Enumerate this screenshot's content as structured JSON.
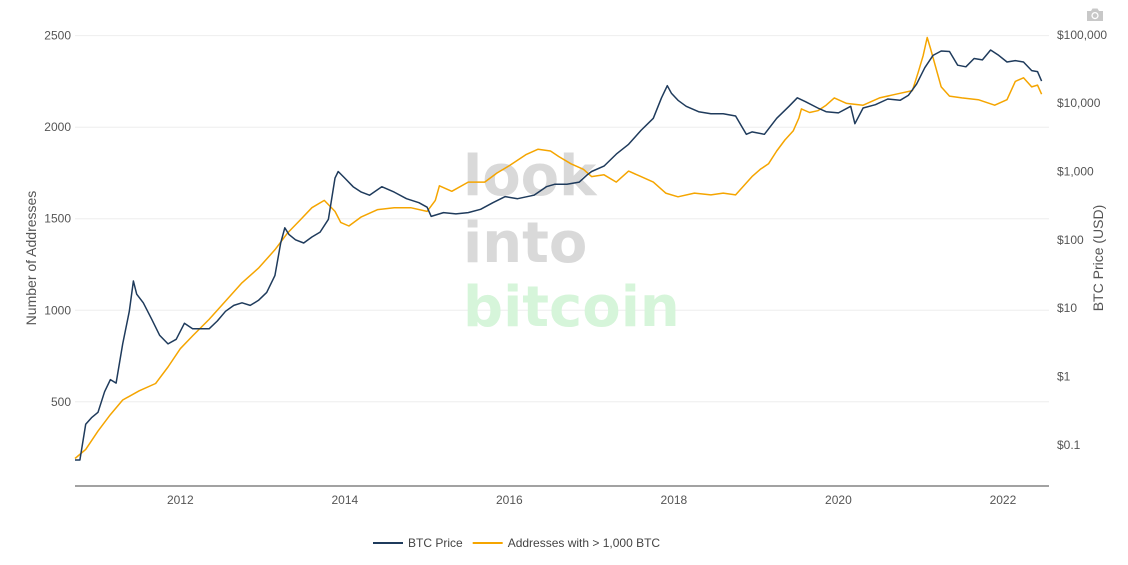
{
  "toolbar": {
    "camera_icon": "camera-icon"
  },
  "watermark": {
    "line1": "look",
    "line2": "into",
    "line3": "bitcoin",
    "color1": "#d9d9d9",
    "color2": "#d6f5da"
  },
  "chart_data": {
    "type": "line",
    "title": "",
    "xlabel": "",
    "xlim": [
      2010.72,
      2022.56
    ],
    "x_ticks": [
      2012,
      2014,
      2016,
      2018,
      2020,
      2022
    ],
    "x_tick_labels": [
      "2012",
      "2014",
      "2016",
      "2018",
      "2020",
      "2022"
    ],
    "y_left": {
      "label": "Number of Addresses",
      "range": [
        40,
        2520
      ],
      "ticks": [
        500,
        1000,
        1500,
        2000,
        2500
      ],
      "tick_labels": [
        "500",
        "1000",
        "1500",
        "2000",
        "2500"
      ]
    },
    "y_right": {
      "label": "BTC Price (USD)",
      "scale": "log",
      "range": [
        0.025,
        110000
      ],
      "ticks": [
        0.1,
        1,
        10,
        100,
        1000,
        10000,
        100000
      ],
      "tick_labels": [
        "$0.1",
        "$1",
        "$10",
        "$100",
        "$1,000",
        "$10,000",
        "$100,000"
      ]
    },
    "grid": true,
    "legend_position": "bottom-center",
    "series": [
      {
        "name": "BTC Price",
        "axis": "right",
        "color": "#1f3b5c",
        "x": [
          2010.72,
          2010.78,
          2010.85,
          2010.92,
          2011.0,
          2011.08,
          2011.15,
          2011.22,
          2011.3,
          2011.38,
          2011.43,
          2011.47,
          2011.55,
          2011.65,
          2011.75,
          2011.85,
          2011.95,
          2012.05,
          2012.15,
          2012.25,
          2012.35,
          2012.45,
          2012.55,
          2012.65,
          2012.75,
          2012.85,
          2012.95,
          2013.05,
          2013.15,
          2013.22,
          2013.27,
          2013.32,
          2013.4,
          2013.5,
          2013.6,
          2013.7,
          2013.8,
          2013.88,
          2013.92,
          2014.0,
          2014.1,
          2014.2,
          2014.3,
          2014.45,
          2014.6,
          2014.75,
          2014.9,
          2015.0,
          2015.05,
          2015.2,
          2015.35,
          2015.5,
          2015.65,
          2015.8,
          2015.95,
          2016.1,
          2016.3,
          2016.45,
          2016.55,
          2016.7,
          2016.85,
          2016.95,
          2017.0,
          2017.15,
          2017.3,
          2017.45,
          2017.6,
          2017.75,
          2017.85,
          2017.92,
          2017.97,
          2018.05,
          2018.15,
          2018.3,
          2018.45,
          2018.6,
          2018.75,
          2018.88,
          2018.95,
          2019.1,
          2019.25,
          2019.4,
          2019.5,
          2019.6,
          2019.75,
          2019.85,
          2020.0,
          2020.15,
          2020.2,
          2020.3,
          2020.45,
          2020.6,
          2020.75,
          2020.85,
          2020.95,
          2021.05,
          2021.15,
          2021.25,
          2021.35,
          2021.45,
          2021.55,
          2021.65,
          2021.75,
          2021.85,
          2021.95,
          2022.05,
          2022.15,
          2022.25,
          2022.35,
          2022.42,
          2022.47
        ],
        "y": [
          0.06,
          0.06,
          0.2,
          0.25,
          0.3,
          0.6,
          0.9,
          0.8,
          3.0,
          9.0,
          25,
          16,
          12,
          7,
          4,
          3,
          3.5,
          6,
          5,
          5,
          5,
          6.5,
          9,
          11,
          12,
          11,
          13,
          17,
          30,
          90,
          150,
          120,
          100,
          90,
          110,
          130,
          200,
          800,
          1000,
          800,
          600,
          500,
          450,
          600,
          500,
          400,
          350,
          300,
          220,
          250,
          240,
          250,
          280,
          350,
          430,
          400,
          450,
          600,
          650,
          650,
          700,
          900,
          1000,
          1200,
          1800,
          2500,
          4000,
          6000,
          12000,
          18000,
          14000,
          11000,
          9000,
          7500,
          7000,
          7000,
          6500,
          3500,
          3800,
          3500,
          6000,
          9000,
          12000,
          10500,
          8500,
          7500,
          7200,
          9000,
          5000,
          8500,
          9500,
          11500,
          11000,
          13000,
          19000,
          33000,
          50000,
          58000,
          57000,
          36000,
          34000,
          45000,
          43000,
          60000,
          50000,
          40000,
          42000,
          40000,
          30000,
          29000,
          21000
        ]
      },
      {
        "name": "Addresses with > 1,000 BTC",
        "axis": "left",
        "color": "#f5a500",
        "x": [
          2010.72,
          2010.85,
          2011.0,
          2011.15,
          2011.3,
          2011.5,
          2011.7,
          2011.85,
          2012.0,
          2012.15,
          2012.35,
          2012.55,
          2012.75,
          2012.95,
          2013.15,
          2013.3,
          2013.45,
          2013.6,
          2013.75,
          2013.88,
          2013.95,
          2014.05,
          2014.2,
          2014.4,
          2014.6,
          2014.8,
          2015.0,
          2015.1,
          2015.15,
          2015.3,
          2015.5,
          2015.7,
          2015.85,
          2016.0,
          2016.2,
          2016.35,
          2016.5,
          2016.6,
          2016.75,
          2016.9,
          2017.0,
          2017.15,
          2017.3,
          2017.45,
          2017.6,
          2017.75,
          2017.9,
          2018.05,
          2018.25,
          2018.45,
          2018.6,
          2018.75,
          2018.85,
          2018.95,
          2019.05,
          2019.15,
          2019.25,
          2019.35,
          2019.45,
          2019.52,
          2019.55,
          2019.65,
          2019.75,
          2019.85,
          2019.95,
          2020.1,
          2020.3,
          2020.5,
          2020.7,
          2020.9,
          2020.97,
          2021.03,
          2021.08,
          2021.12,
          2021.25,
          2021.35,
          2021.5,
          2021.7,
          2021.9,
          2022.05,
          2022.15,
          2022.25,
          2022.35,
          2022.42,
          2022.47
        ],
        "y": [
          190,
          240,
          340,
          430,
          510,
          560,
          600,
          690,
          790,
          860,
          950,
          1050,
          1150,
          1230,
          1330,
          1420,
          1490,
          1560,
          1600,
          1540,
          1480,
          1460,
          1510,
          1550,
          1560,
          1560,
          1540,
          1600,
          1680,
          1650,
          1700,
          1700,
          1750,
          1790,
          1850,
          1880,
          1870,
          1840,
          1800,
          1770,
          1730,
          1740,
          1700,
          1760,
          1730,
          1700,
          1640,
          1620,
          1640,
          1630,
          1640,
          1630,
          1680,
          1730,
          1770,
          1800,
          1870,
          1930,
          1980,
          2050,
          2100,
          2080,
          2090,
          2120,
          2160,
          2130,
          2120,
          2160,
          2180,
          2200,
          2300,
          2390,
          2490,
          2430,
          2220,
          2170,
          2160,
          2150,
          2120,
          2150,
          2250,
          2270,
          2220,
          2230,
          2180
        ]
      }
    ]
  }
}
